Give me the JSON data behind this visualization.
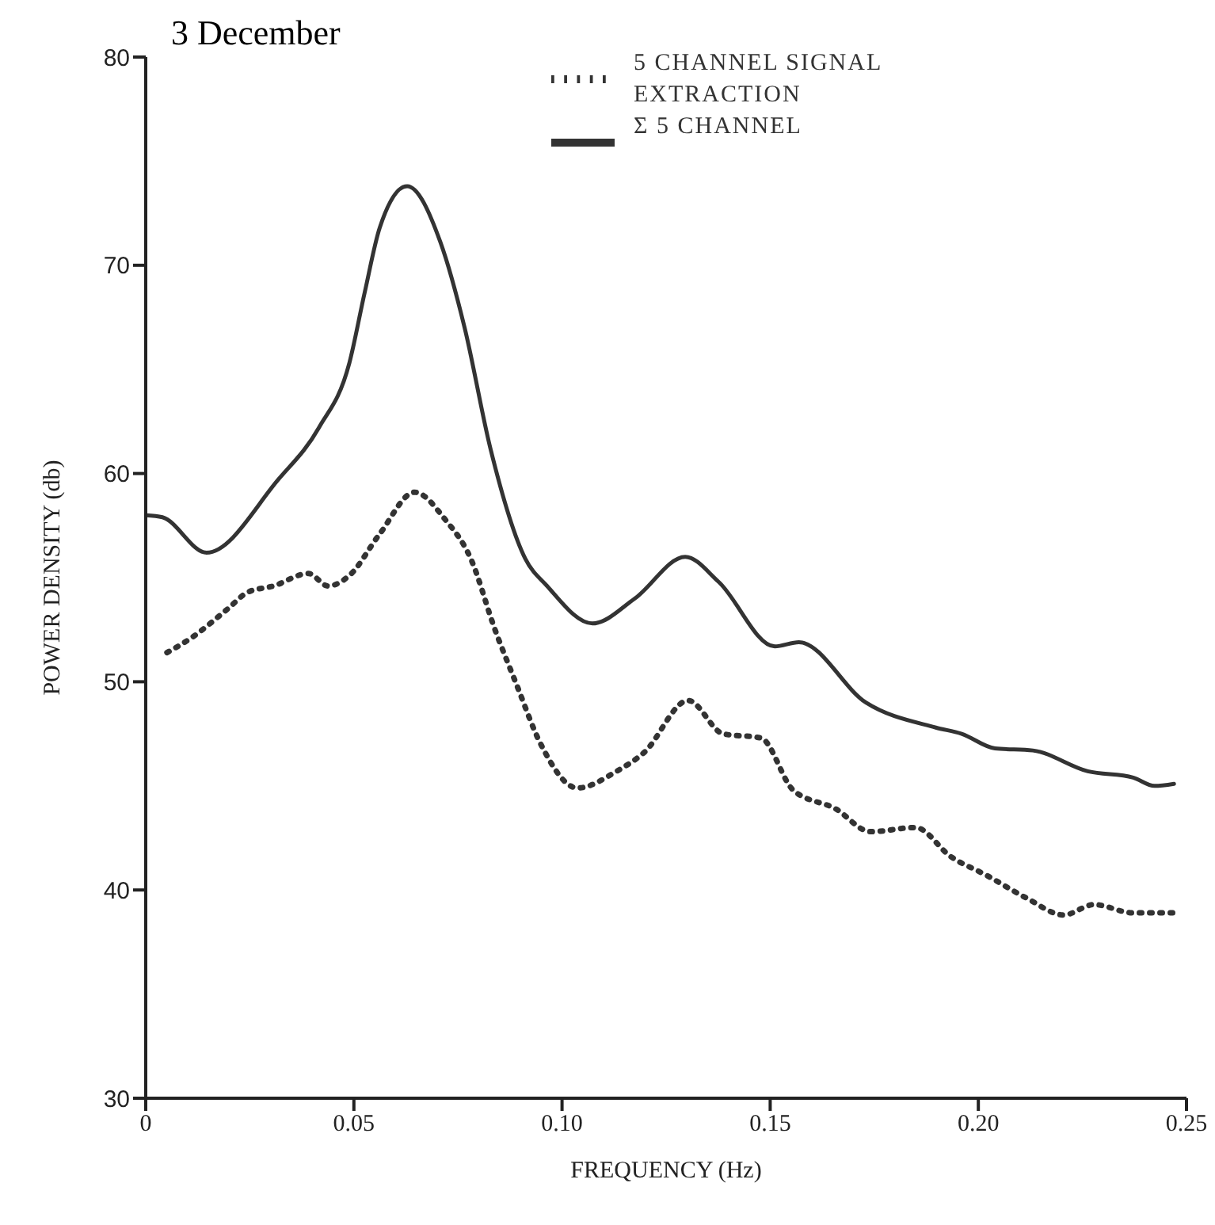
{
  "chart_data": {
    "type": "line",
    "title": "3 December",
    "xlabel": "FREQUENCY (Hz)",
    "ylabel": "POWER DENSITY (db)",
    "xlim": [
      0,
      0.25
    ],
    "xticks": [
      0,
      {
        "value": 0.05,
        "label": "0.05"
      },
      {
        "value": 0.1,
        "label": "0.10"
      },
      {
        "value": 0.15,
        "label": "0.15"
      },
      {
        "value": 0.2,
        "label": "0.20"
      },
      {
        "value": 0.25,
        "label": "0.25"
      }
    ],
    "ylim": [
      30,
      80
    ],
    "yticks": [
      30,
      40,
      50,
      60,
      70,
      80
    ],
    "grid": false,
    "legend": "top right",
    "marker": "none",
    "series": [
      {
        "name": "Σ 5 CHANNEL",
        "color": "#333333",
        "line_style": "solid",
        "x": [
          0,
          0.004,
          0.0146,
          0.0318,
          0.0416,
          0.0489,
          0.0526,
          0.0562,
          0.0628,
          0.0708,
          0.0766,
          0.0828,
          0.0912,
          0.0964,
          0.1073,
          0.1175,
          0.1296,
          0.1376,
          0.1511,
          0.1569,
          0.173,
          0.1898,
          0.196,
          0.204,
          0.2131,
          0.2263,
          0.2372,
          0.2423,
          0.247
        ],
        "values": [
          58.0,
          57.9,
          56.2,
          59.7,
          62.2,
          65.3,
          68.7,
          71.8,
          73.8,
          71.1,
          67.0,
          61.2,
          55.9,
          54.6,
          52.8,
          54.0,
          56.0,
          54.8,
          51.7,
          51.9,
          49.0,
          47.8,
          47.5,
          46.8,
          46.7,
          45.7,
          45.4,
          45.0,
          45.1
        ]
      },
      {
        "name": "5 CHANNEL SIGNAL EXTRACTION",
        "color": "#333333",
        "line_style": "dotted",
        "x": [
          0.0051,
          0.0109,
          0.0197,
          0.0245,
          0.0307,
          0.0391,
          0.0438,
          0.0489,
          0.0562,
          0.0646,
          0.0719,
          0.0781,
          0.0839,
          0.089,
          0.0949,
          0.1037,
          0.1131,
          0.1197,
          0.1303,
          0.1387,
          0.1478,
          0.1555,
          0.1657,
          0.1741,
          0.1849,
          0.1934,
          0.202,
          0.2117,
          0.2205,
          0.2278,
          0.2372,
          0.247
        ],
        "values": [
          51.4,
          52.1,
          53.5,
          54.3,
          54.6,
          55.2,
          54.6,
          55.1,
          57.1,
          59.1,
          57.8,
          55.9,
          52.5,
          49.9,
          47.0,
          44.9,
          45.7,
          46.6,
          49.1,
          47.5,
          47.3,
          44.8,
          43.9,
          42.8,
          43.0,
          41.6,
          40.7,
          39.6,
          38.8,
          39.3,
          38.9,
          38.9
        ]
      }
    ]
  }
}
